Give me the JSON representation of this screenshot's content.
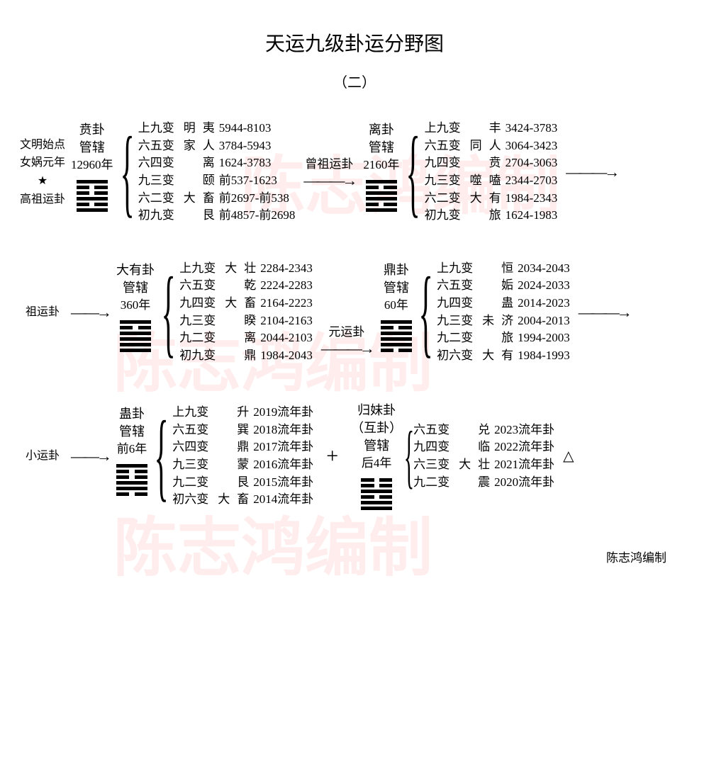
{
  "title": "天运九级卦运分野图",
  "subtitle": "（二）",
  "credit": "陈志鸿编制",
  "watermark": "陈志鸿编制",
  "colors": {
    "text": "#000000",
    "background": "#ffffff",
    "watermark": "#ff7070"
  },
  "left_labels": {
    "row1": "文明始点\n女娲元年\n★\n高祖运卦",
    "row2": "祖运卦",
    "row3": "小运卦"
  },
  "arrow_labels": {
    "r1": "曾祖运卦",
    "r2": "元运卦"
  },
  "groups": {
    "r1a": {
      "name": "贲卦",
      "sub": "管辖",
      "years": "12960年",
      "hex": [
        1,
        0,
        0,
        1,
        0,
        1
      ],
      "lines": [
        [
          "上九变",
          "明夷",
          "5944-8103"
        ],
        [
          "六五变",
          "家人",
          "3784-5943"
        ],
        [
          "六四变",
          "离",
          "1624-3783"
        ],
        [
          "九三变",
          "颐",
          "前537-1623"
        ],
        [
          "六二变",
          "大畜",
          "前2697-前538"
        ],
        [
          "初九变",
          "艮",
          "前4857-前2698"
        ]
      ]
    },
    "r1b": {
      "name": "离卦",
      "sub": "管辖",
      "years": "2160年",
      "hex": [
        1,
        0,
        1,
        1,
        0,
        1
      ],
      "lines": [
        [
          "上九变",
          "丰",
          "3424-3783"
        ],
        [
          "六五变",
          "同人",
          "3064-3423"
        ],
        [
          "九四变",
          "贲",
          "2704-3063"
        ],
        [
          "九三变",
          "噬嗑",
          "2344-2703"
        ],
        [
          "六二变",
          "大有",
          "1984-2343"
        ],
        [
          "初九变",
          "旅",
          "1624-1983"
        ]
      ]
    },
    "r2a": {
      "name": "大有卦",
      "sub": "管辖",
      "years": "360年",
      "hex": [
        1,
        0,
        1,
        1,
        1,
        1
      ],
      "lines": [
        [
          "上九变",
          "大壮",
          "2284-2343"
        ],
        [
          "六五变",
          "乾",
          "2224-2283"
        ],
        [
          "九四变",
          "大畜",
          "2164-2223"
        ],
        [
          "九三变",
          "睽",
          "2104-2163"
        ],
        [
          "九二变",
          "离",
          "2044-2103"
        ],
        [
          "初九变",
          "鼎",
          "1984-2043"
        ]
      ]
    },
    "r2b": {
      "name": "鼎卦",
      "sub": "管辖",
      "years": "60年",
      "hex": [
        1,
        0,
        1,
        1,
        1,
        0
      ],
      "lines": [
        [
          "上九变",
          "恒",
          "2034-2043"
        ],
        [
          "六五变",
          "姤",
          "2024-2033"
        ],
        [
          "九四变",
          "蛊",
          "2014-2023"
        ],
        [
          "九三变",
          "未济",
          "2004-2013"
        ],
        [
          "九二变",
          "旅",
          "1994-2003"
        ],
        [
          "初六变",
          "大有",
          "1984-1993"
        ]
      ]
    },
    "r3a": {
      "name": "蛊卦",
      "sub": "管辖",
      "years": "前6年",
      "hex": [
        1,
        0,
        0,
        1,
        1,
        0
      ],
      "lines": [
        [
          "上九变",
          "升",
          "2019流年卦"
        ],
        [
          "六五变",
          "巽",
          "2018流年卦"
        ],
        [
          "六四变",
          "鼎",
          "2017流年卦"
        ],
        [
          "九三变",
          "蒙",
          "2016流年卦"
        ],
        [
          "九二变",
          "艮",
          "2015流年卦"
        ],
        [
          "初六变",
          "大畜",
          "2014流年卦"
        ]
      ]
    },
    "r3b": {
      "name": "归妹卦",
      "sub2": "（互卦）",
      "sub": "管辖",
      "years": "后4年",
      "hex": [
        0,
        0,
        1,
        0,
        1,
        1
      ],
      "lines": [
        [
          "六五变",
          "兑",
          "2023流年卦"
        ],
        [
          "九四变",
          "临",
          "2022流年卦"
        ],
        [
          "六三变",
          "大壮",
          "2021流年卦"
        ],
        [
          "九二变",
          "震",
          "2020流年卦"
        ]
      ]
    }
  }
}
